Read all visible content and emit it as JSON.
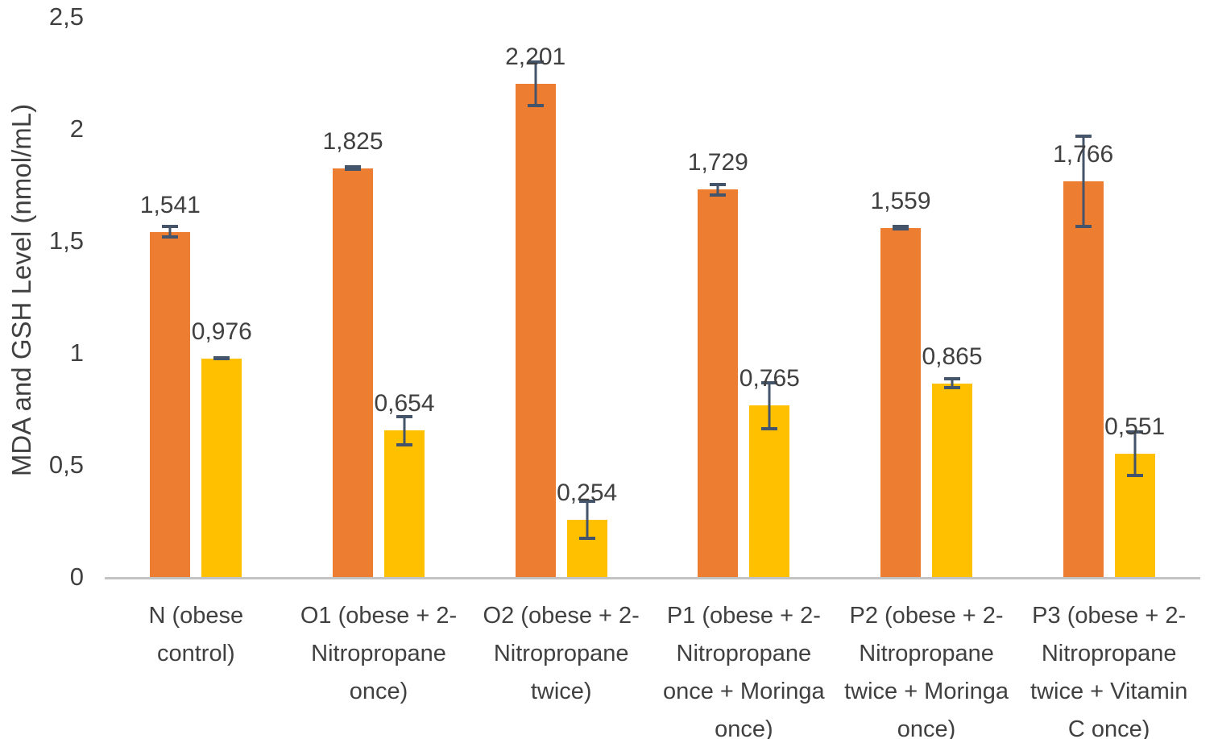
{
  "chart_data": {
    "type": "bar",
    "title": "",
    "ylabel": "MDA and GSH Level (nmol/mL)",
    "xlabel": "",
    "ylim": [
      0,
      2.5
    ],
    "grid": false,
    "legend_position": "none",
    "decimal_separator": "comma",
    "yticks": [
      {
        "value": 0,
        "label": "0"
      },
      {
        "value": 0.5,
        "label": "0,5"
      },
      {
        "value": 1,
        "label": "1"
      },
      {
        "value": 1.5,
        "label": "1,5"
      },
      {
        "value": 2,
        "label": "2"
      },
      {
        "value": 2.5,
        "label": "2,5"
      }
    ],
    "categories": [
      "N (obese control)",
      "O1 (obese + 2-Nitropropane once)",
      "O2 (obese + 2-Nitropropane twice)",
      "P1 (obese + 2-Nitropropane once + Moringa once)",
      "P2 (obese + 2-Nitropropane twice + Moringa once)",
      "P3 (obese + 2-Nitropropane twice + Vitamin C once)"
    ],
    "series": [
      {
        "name": "MDA",
        "color": "#ED7D31",
        "values": [
          1.541,
          1.825,
          2.201,
          1.729,
          1.559,
          1.766
        ],
        "value_labels": [
          "1,541",
          "1,825",
          "2,201",
          "1,729",
          "1,559",
          "1,766"
        ],
        "error_bars": [
          0.03,
          0.012,
          0.105,
          0.03,
          0.012,
          0.21
        ]
      },
      {
        "name": "GSH",
        "color": "#FFC000",
        "values": [
          0.976,
          0.654,
          0.254,
          0.765,
          0.865,
          0.551
        ],
        "value_labels": [
          "0,976",
          "0,654",
          "0,254",
          "0,765",
          "0,865",
          "0,551"
        ],
        "error_bars": [
          0.01,
          0.07,
          0.09,
          0.11,
          0.028,
          0.105
        ]
      }
    ],
    "error_bar_color": "#44546A",
    "axis_line_color": "#C3C3C3",
    "text_color": "#404040"
  }
}
